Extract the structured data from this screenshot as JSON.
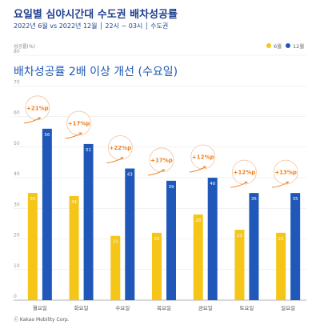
{
  "header": {
    "title": "요일별 심야시간대 수도권 배차성공률",
    "subtitle": "2022년 6월 vs 2022년 12월 │ 22시 ~ 03시 │ 수도권"
  },
  "footer": {
    "source": "ⓒ Kakao Mobility Corp."
  },
  "chart_data": {
    "type": "bar",
    "title": "",
    "ylabel": "성공률(%)",
    "headline": "배차성공률 2배 이상 개선 (수요일)",
    "categories": [
      "월요일",
      "화요일",
      "수요일",
      "목요일",
      "금요일",
      "토요일",
      "일요일"
    ],
    "series": [
      {
        "name": "6월",
        "values": [
          35,
          34,
          21,
          22,
          28,
          23,
          22
        ],
        "color": "#f5c518"
      },
      {
        "name": "12월",
        "values": [
          56,
          51,
          43,
          39,
          40,
          35,
          35
        ],
        "color": "#1f58b8"
      }
    ],
    "annotations": [
      "+21%p",
      "+17%p",
      "+22%p",
      "+17%p",
      "+12%p",
      "+12%p",
      "+13%p"
    ],
    "annotation_color": "#f0801e",
    "ylim": [
      0,
      80
    ],
    "yticks": [
      0,
      10,
      20,
      30,
      40,
      50,
      60,
      70,
      80
    ],
    "grid": true,
    "legend_position": "top-right"
  }
}
